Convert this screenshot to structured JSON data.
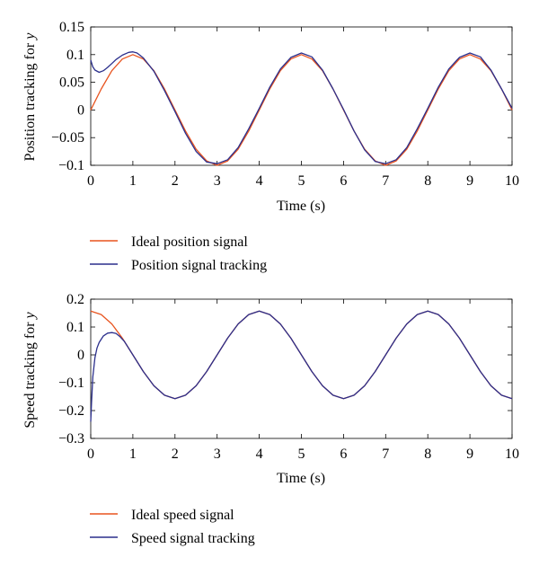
{
  "chart_data": [
    {
      "type": "line",
      "xlabel": "Time (s)",
      "ylabel": "Position tracking for",
      "ylabel_var": "y",
      "xlim": [
        0,
        10
      ],
      "ylim": [
        -0.1,
        0.15
      ],
      "xticks": [
        0,
        1,
        2,
        3,
        4,
        5,
        6,
        7,
        8,
        9,
        10
      ],
      "xtick_labels": [
        "0",
        "1",
        "2",
        "3",
        "4",
        "5",
        "6",
        "7",
        "8",
        "9",
        "10"
      ],
      "yticks": [
        -0.1,
        -0.05,
        0,
        0.05,
        0.1,
        0.15
      ],
      "ytick_labels": [
        "−0.1",
        "−0.05",
        "0",
        "0.05",
        "0.1",
        "0.15"
      ],
      "grid": false,
      "legend_position": "below",
      "series": [
        {
          "name": "Ideal position signal",
          "color": "#e8541f",
          "x": [
            0,
            0.25,
            0.5,
            0.75,
            1,
            1.25,
            1.5,
            1.75,
            2,
            2.25,
            2.5,
            2.75,
            3,
            3.25,
            3.5,
            3.75,
            4,
            4.25,
            4.5,
            4.75,
            5,
            5.25,
            5.5,
            5.75,
            6,
            6.25,
            6.5,
            6.75,
            7,
            7.25,
            7.5,
            7.75,
            8,
            8.25,
            8.5,
            8.75,
            9,
            9.25,
            9.5,
            9.75,
            10
          ],
          "y": [
            0,
            0.038,
            0.071,
            0.092,
            0.1,
            0.092,
            0.071,
            0.038,
            0,
            -0.038,
            -0.071,
            -0.092,
            -0.1,
            -0.092,
            -0.071,
            -0.038,
            0,
            0.038,
            0.071,
            0.092,
            0.1,
            0.092,
            0.071,
            0.038,
            0,
            -0.038,
            -0.071,
            -0.092,
            -0.1,
            -0.092,
            -0.071,
            -0.038,
            0,
            0.038,
            0.071,
            0.092,
            0.1,
            0.092,
            0.071,
            0.038,
            0
          ]
        },
        {
          "name": "Position signal tracking",
          "color": "#2b2f8c",
          "x": [
            0,
            0.05,
            0.1,
            0.2,
            0.3,
            0.4,
            0.5,
            0.6,
            0.75,
            0.9,
            1,
            1.1,
            1.25,
            1.5,
            1.75,
            2,
            2.25,
            2.5,
            2.75,
            3,
            3.25,
            3.5,
            3.75,
            4,
            4.25,
            4.5,
            4.75,
            5,
            5.25,
            5.5,
            5.75,
            6,
            6.25,
            6.5,
            6.75,
            7,
            7.25,
            7.5,
            7.75,
            8,
            8.25,
            8.5,
            8.75,
            9,
            9.25,
            9.5,
            9.75,
            10
          ],
          "y": [
            0.09,
            0.078,
            0.072,
            0.068,
            0.071,
            0.077,
            0.084,
            0.091,
            0.099,
            0.104,
            0.105,
            0.103,
            0.094,
            0.07,
            0.035,
            -0.003,
            -0.042,
            -0.075,
            -0.094,
            -0.097,
            -0.09,
            -0.068,
            -0.034,
            0.003,
            0.041,
            0.074,
            0.095,
            0.103,
            0.096,
            0.072,
            0.038,
            0.001,
            -0.038,
            -0.072,
            -0.093,
            -0.097,
            -0.09,
            -0.068,
            -0.034,
            0.003,
            0.041,
            0.074,
            0.095,
            0.103,
            0.096,
            0.072,
            0.038,
            0.003
          ]
        }
      ]
    },
    {
      "type": "line",
      "xlabel": "Time (s)",
      "ylabel": "Speed tracking for",
      "ylabel_var": "y",
      "xlim": [
        0,
        10
      ],
      "ylim": [
        -0.3,
        0.2
      ],
      "xticks": [
        0,
        1,
        2,
        3,
        4,
        5,
        6,
        7,
        8,
        9,
        10
      ],
      "xtick_labels": [
        "0",
        "1",
        "2",
        "3",
        "4",
        "5",
        "6",
        "7",
        "8",
        "9",
        "10"
      ],
      "yticks": [
        -0.3,
        -0.2,
        -0.1,
        0,
        0.1,
        0.2
      ],
      "ytick_labels": [
        "−0.3",
        "−0.2",
        "−0.1",
        "0",
        "0.1",
        "0.2"
      ],
      "grid": false,
      "legend_position": "below",
      "series": [
        {
          "name": "Ideal speed signal",
          "color": "#e8541f",
          "x": [
            0,
            0.25,
            0.5,
            0.75,
            1,
            1.25,
            1.5,
            1.75,
            2,
            2.25,
            2.5,
            2.75,
            3,
            3.25,
            3.5,
            3.75,
            4,
            4.25,
            4.5,
            4.75,
            5,
            5.25,
            5.5,
            5.75,
            6,
            6.25,
            6.5,
            6.75,
            7,
            7.25,
            7.5,
            7.75,
            8,
            8.25,
            8.5,
            8.75,
            9,
            9.25,
            9.5,
            9.75,
            10
          ],
          "y": [
            0.157,
            0.145,
            0.111,
            0.06,
            0,
            -0.06,
            -0.111,
            -0.145,
            -0.157,
            -0.145,
            -0.111,
            -0.06,
            0,
            0.06,
            0.111,
            0.145,
            0.157,
            0.145,
            0.111,
            0.06,
            0,
            -0.06,
            -0.111,
            -0.145,
            -0.157,
            -0.145,
            -0.111,
            -0.06,
            0,
            0.06,
            0.111,
            0.145,
            0.157,
            0.145,
            0.111,
            0.06,
            0,
            -0.06,
            -0.111,
            -0.145,
            -0.157
          ]
        },
        {
          "name": "Speed signal tracking",
          "color": "#2b2f8c",
          "x": [
            0,
            0.02,
            0.05,
            0.1,
            0.15,
            0.2,
            0.3,
            0.4,
            0.5,
            0.6,
            0.7,
            0.8,
            1,
            1.25,
            1.5,
            1.75,
            2,
            2.25,
            2.5,
            2.75,
            3,
            3.25,
            3.5,
            3.75,
            4,
            4.25,
            4.5,
            4.75,
            5,
            5.25,
            5.5,
            5.75,
            6,
            6.25,
            6.5,
            6.75,
            7,
            7.25,
            7.5,
            7.75,
            8,
            8.25,
            8.5,
            8.75,
            9,
            9.25,
            9.5,
            9.75,
            10
          ],
          "y": [
            -0.24,
            -0.17,
            -0.08,
            -0.01,
            0.025,
            0.045,
            0.068,
            0.078,
            0.08,
            0.077,
            0.065,
            0.048,
            0,
            -0.06,
            -0.111,
            -0.145,
            -0.157,
            -0.145,
            -0.111,
            -0.06,
            0,
            0.06,
            0.111,
            0.145,
            0.157,
            0.145,
            0.111,
            0.06,
            0,
            -0.06,
            -0.111,
            -0.145,
            -0.157,
            -0.145,
            -0.111,
            -0.06,
            0,
            0.06,
            0.111,
            0.145,
            0.157,
            0.145,
            0.111,
            0.06,
            0,
            -0.06,
            -0.111,
            -0.145,
            -0.157
          ]
        }
      ]
    }
  ]
}
